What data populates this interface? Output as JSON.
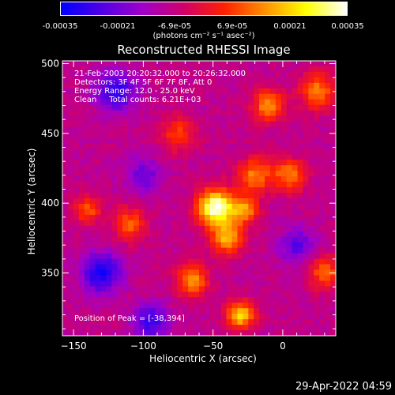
{
  "colorbar": {
    "ticks": [
      "-0.00035",
      "-0.00021",
      "-6.9e-05",
      "6.9e-05",
      "0.00021",
      "0.00035"
    ],
    "tick_values": [
      -0.00035,
      -0.00021,
      -6.9e-05,
      6.9e-05,
      0.00021,
      0.00035
    ],
    "units": "(photons cm⁻² s⁻¹ asec⁻²)",
    "colors": [
      "#0000ff",
      "#5000e6",
      "#a000c8",
      "#d0006a",
      "#ff2000",
      "#ff9000",
      "#ffff00",
      "#ffffff"
    ]
  },
  "annotations": {
    "time": "21-Feb-2003 20:20:32.000 to 20:26:32.000",
    "detectors": "Detectors: 3F 4F 5F 6F 7F 8F, Att 0",
    "energy": "Energy Range: 12.0 - 25.0 keV",
    "clean": "Clean     Total counts: 6.21E+03",
    "peak": "Position of Peak = [-38,394]"
  },
  "footer": {
    "date": "29-Apr-2022 04:59"
  },
  "chart_data": {
    "type": "heatmap",
    "title": "Reconstructed RHESSI Image",
    "xlabel": "Heliocentric X (arcsec)",
    "ylabel": "Heliocentric Y (arcsec)",
    "xlim": [
      -158,
      38
    ],
    "ylim": [
      305,
      502
    ],
    "x_ticks": [
      -150,
      -100,
      -50,
      0
    ],
    "y_ticks": [
      350,
      400,
      450,
      500
    ],
    "x_tick_labels": [
      "−150",
      "−100",
      "−50",
      "0"
    ],
    "y_tick_labels": [
      "350",
      "400",
      "450",
      "500"
    ],
    "peak": [
      -38,
      394
    ],
    "sources": [
      {
        "x": -48,
        "y": 397,
        "amp": 1.0,
        "sigma": 9
      },
      {
        "x": -28,
        "y": 395,
        "amp": 0.55,
        "sigma": 7
      },
      {
        "x": -40,
        "y": 375,
        "amp": 0.6,
        "sigma": 8
      },
      {
        "x": -20,
        "y": 420,
        "amp": 0.5,
        "sigma": 9
      },
      {
        "x": 5,
        "y": 420,
        "amp": 0.5,
        "sigma": 8
      },
      {
        "x": -10,
        "y": 470,
        "amp": 0.55,
        "sigma": 8
      },
      {
        "x": 25,
        "y": 480,
        "amp": 0.5,
        "sigma": 9
      },
      {
        "x": -30,
        "y": 320,
        "amp": 0.7,
        "sigma": 7
      },
      {
        "x": -65,
        "y": 345,
        "amp": 0.55,
        "sigma": 8
      },
      {
        "x": -110,
        "y": 385,
        "amp": 0.45,
        "sigma": 8
      },
      {
        "x": -140,
        "y": 395,
        "amp": 0.4,
        "sigma": 7
      },
      {
        "x": -75,
        "y": 450,
        "amp": 0.35,
        "sigma": 9
      },
      {
        "x": 30,
        "y": 350,
        "amp": 0.45,
        "sigma": 8
      },
      {
        "x": -120,
        "y": 480,
        "amp": -0.5,
        "sigma": 10
      },
      {
        "x": -130,
        "y": 350,
        "amp": -0.55,
        "sigma": 10
      },
      {
        "x": -95,
        "y": 315,
        "amp": -0.45,
        "sigma": 9
      },
      {
        "x": 10,
        "y": 370,
        "amp": -0.35,
        "sigma": 9
      },
      {
        "x": -100,
        "y": 420,
        "amp": -0.3,
        "sigma": 9
      }
    ]
  }
}
